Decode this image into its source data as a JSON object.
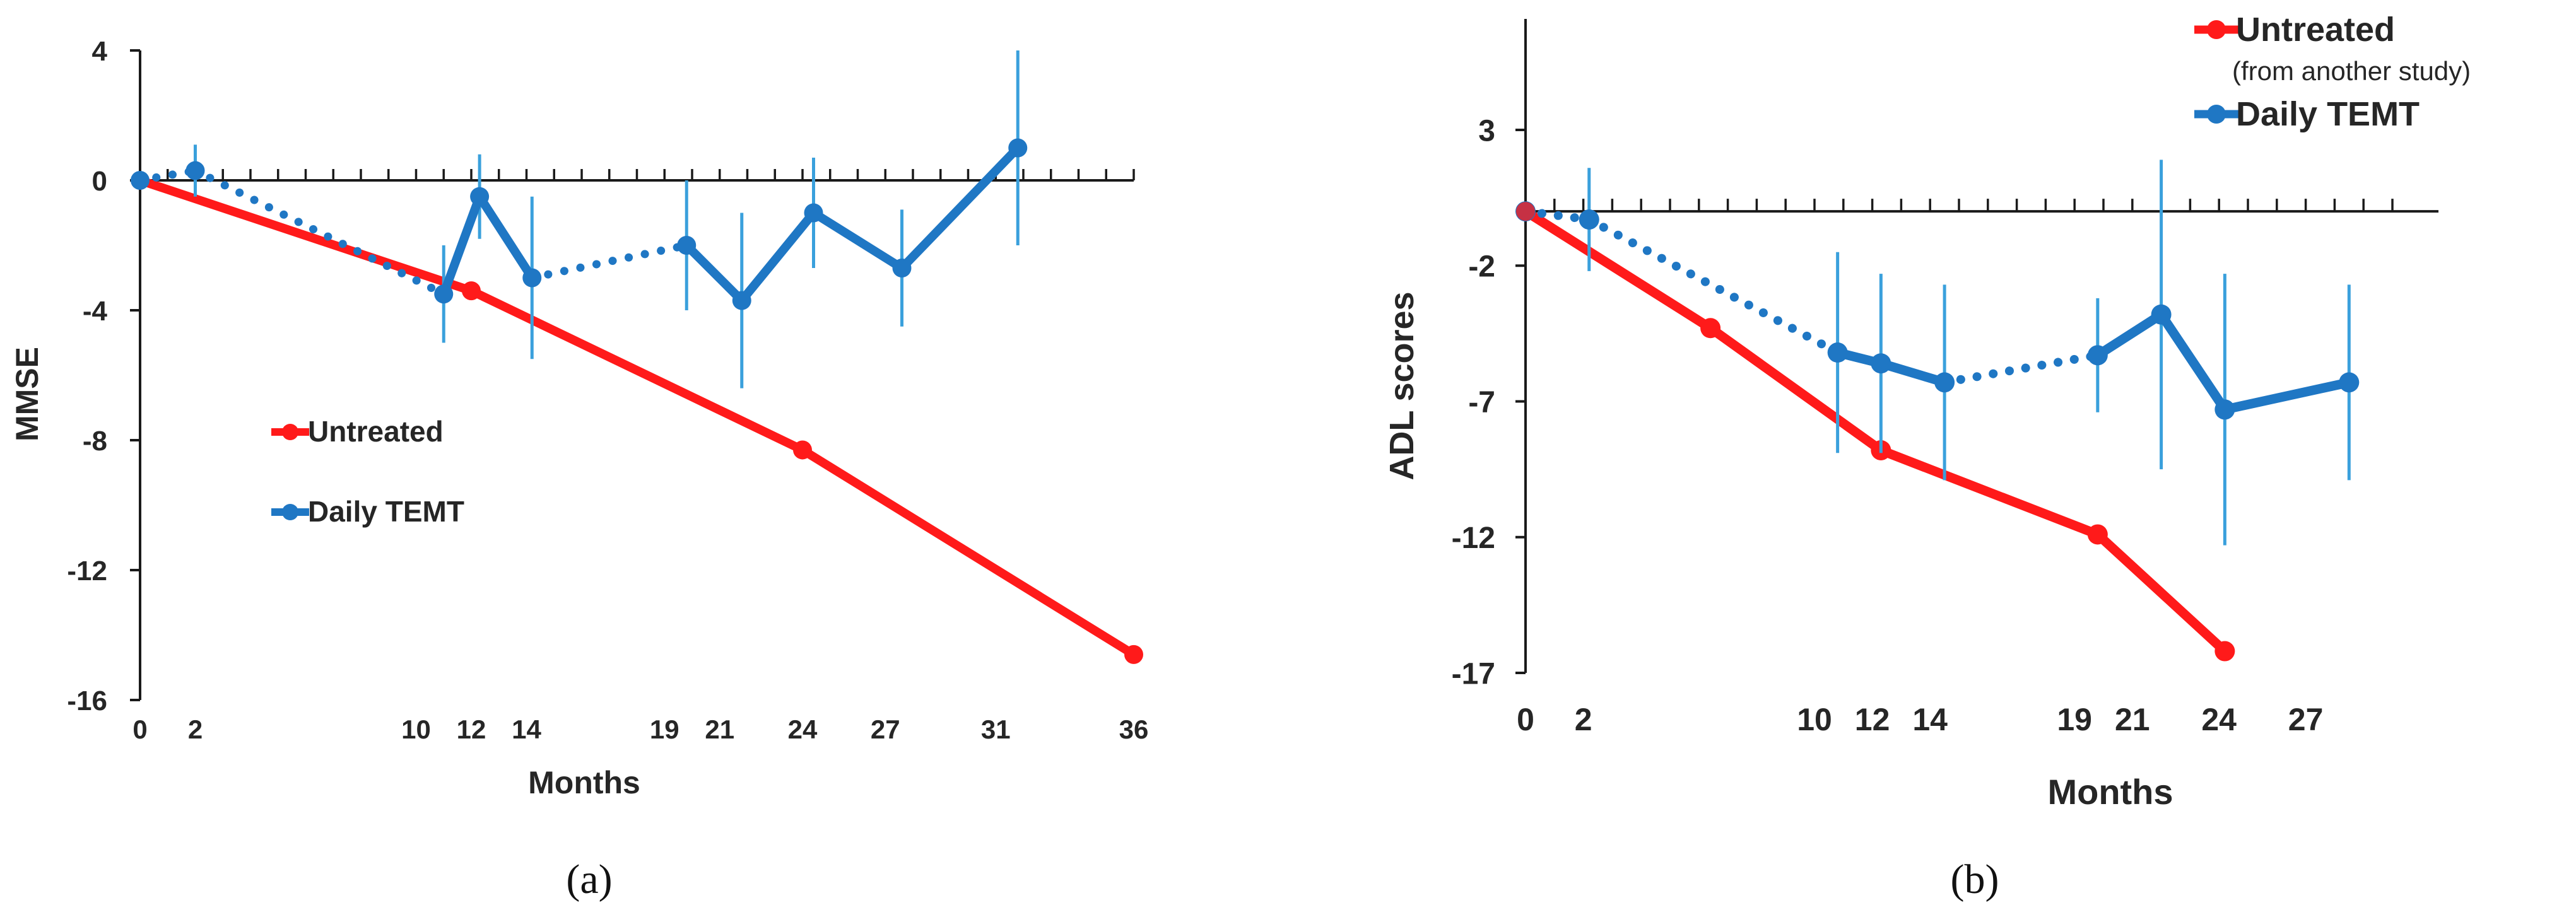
{
  "colors": {
    "untreated": "#ff1a1a",
    "temt": "#1f77c4",
    "errbar": "#3aa0dc",
    "axis": "#1a1a1a"
  },
  "chart_data": [
    {
      "type": "line",
      "panel_label": "(a)",
      "xlabel": "Months",
      "ylabel": "MMSE",
      "xlim": [
        0,
        36
      ],
      "ylim": [
        -16,
        4
      ],
      "x_ticks": [
        0,
        2,
        10,
        12,
        14,
        19,
        21,
        24,
        27,
        31,
        36
      ],
      "y_ticks": [
        4,
        0,
        -4,
        -8,
        -12,
        -16
      ],
      "legend": {
        "items": [
          {
            "name": "Untreated",
            "sub": ""
          },
          {
            "name": "Daily TEMT",
            "sub": ""
          }
        ]
      },
      "series": [
        {
          "name": "Untreated",
          "color_key": "untreated",
          "points": [
            {
              "x": 0,
              "y": 0
            },
            {
              "x": 12,
              "y": -3.4
            },
            {
              "x": 24,
              "y": -8.3
            },
            {
              "x": 36,
              "y": -14.6
            }
          ]
        },
        {
          "name": "Daily TEMT",
          "color_key": "temt",
          "points": [
            {
              "x": 0,
              "y": 0,
              "err": 0
            },
            {
              "x": 2,
              "y": 0.3,
              "err": 0.8
            },
            {
              "x": 11,
              "y": -3.5,
              "err": 1.5
            },
            {
              "x": 12.3,
              "y": -0.5,
              "err": 1.3
            },
            {
              "x": 14.2,
              "y": -3.0,
              "err": 2.5
            },
            {
              "x": 19.8,
              "y": -2.0,
              "err": 2.0
            },
            {
              "x": 21.8,
              "y": -3.7,
              "err": 2.7
            },
            {
              "x": 24.4,
              "y": -1.0,
              "err": 1.7
            },
            {
              "x": 27.6,
              "y": -2.7,
              "err": 1.8
            },
            {
              "x": 31.8,
              "y": 1.0,
              "err": 3.0
            }
          ],
          "dotted_segments": [
            [
              0,
              1
            ],
            [
              1,
              2
            ],
            [
              4,
              5
            ]
          ]
        }
      ]
    },
    {
      "type": "line",
      "panel_label": "(b)",
      "xlabel": "Months",
      "ylabel": "ADL scores",
      "xlim": [
        0,
        30
      ],
      "ylim": [
        -17,
        3
      ],
      "x_ticks": [
        0,
        2,
        10,
        12,
        14,
        19,
        21,
        24,
        27
      ],
      "y_ticks": [
        3,
        -2,
        -7,
        -12,
        -17
      ],
      "legend": {
        "items": [
          {
            "name": "Untreated",
            "sub": "(from another study)"
          },
          {
            "name": "Daily TEMT",
            "sub": ""
          }
        ]
      },
      "series": [
        {
          "name": "Untreated",
          "color_key": "untreated",
          "points": [
            {
              "x": 0,
              "y": 0
            },
            {
              "x": 6.4,
              "y": -4.3
            },
            {
              "x": 12.3,
              "y": -8.8
            },
            {
              "x": 19.8,
              "y": -11.9
            },
            {
              "x": 24.2,
              "y": -16.2
            }
          ]
        },
        {
          "name": "Daily TEMT",
          "color_key": "temt",
          "points": [
            {
              "x": 0,
              "y": 0,
              "err": 0
            },
            {
              "x": 2.2,
              "y": -0.3,
              "err": 1.9
            },
            {
              "x": 10.8,
              "y": -5.2,
              "err": 3.7
            },
            {
              "x": 12.3,
              "y": -5.6,
              "err": 3.3
            },
            {
              "x": 14.5,
              "y": -6.3,
              "err": 3.6
            },
            {
              "x": 19.8,
              "y": -5.3,
              "err": 2.1
            },
            {
              "x": 22.0,
              "y": -3.8,
              "err": 5.7
            },
            {
              "x": 24.2,
              "y": -7.3,
              "err": 5.0
            },
            {
              "x": 28.5,
              "y": -6.3,
              "err": 3.6
            }
          ],
          "dotted_segments": [
            [
              0,
              1
            ],
            [
              1,
              2
            ],
            [
              4,
              5
            ]
          ]
        }
      ]
    }
  ]
}
